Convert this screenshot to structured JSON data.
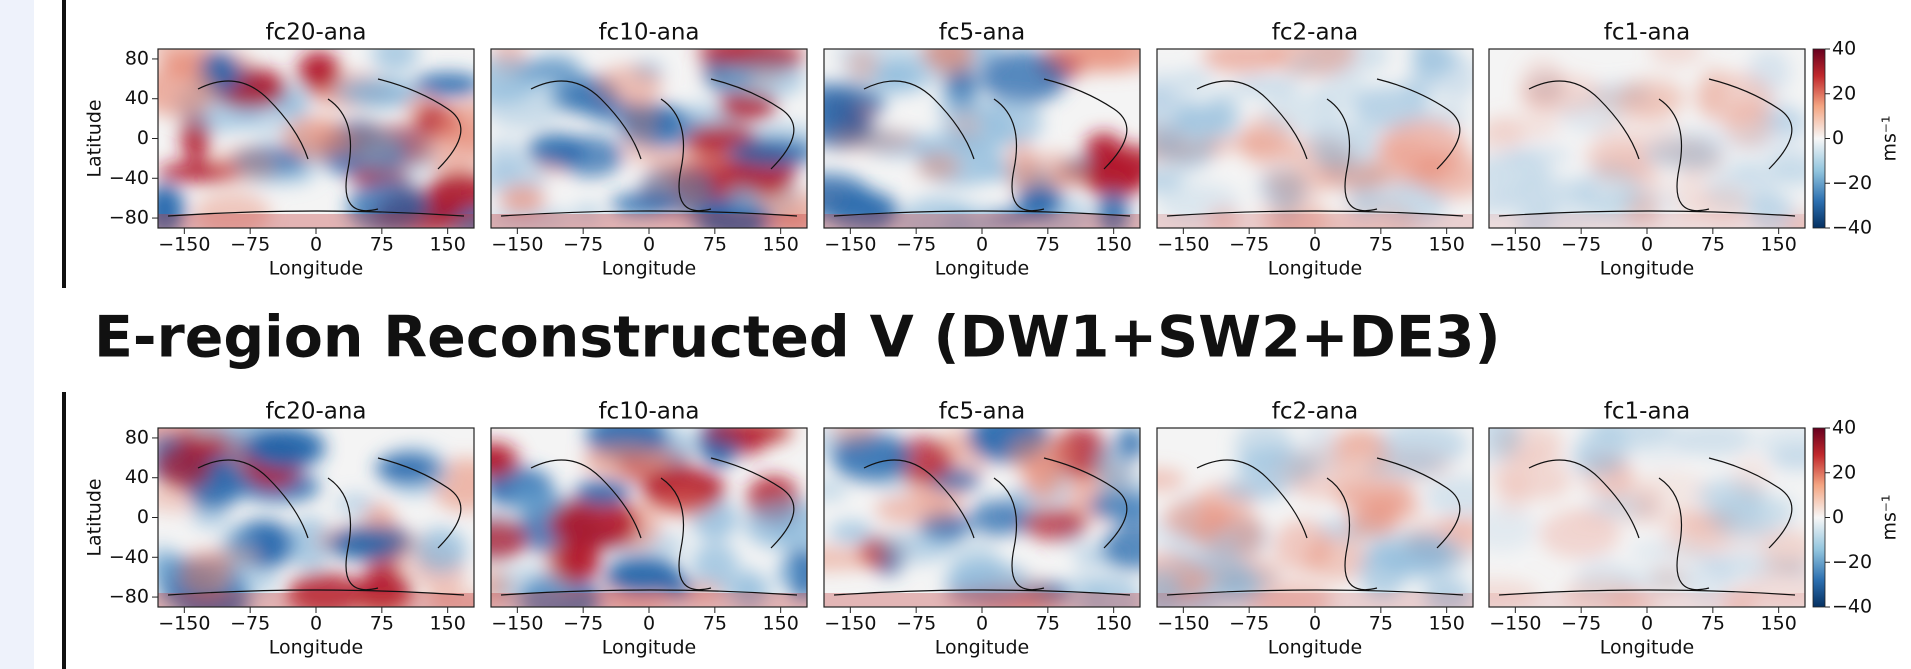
{
  "heading": "E-region Reconstructed V (DW1+SW2+DE3)",
  "rows": [
    {
      "panels": [
        {
          "title": "fc20-ana"
        },
        {
          "title": "fc10-ana"
        },
        {
          "title": "fc5-ana"
        },
        {
          "title": "fc2-ana"
        },
        {
          "title": "fc1-ana"
        }
      ],
      "y_label": "Latitude",
      "y_ticks": [
        "80",
        "40",
        "0",
        "−40",
        "−80"
      ],
      "x_label": "Longitude",
      "x_ticks": [
        "−150",
        "−75",
        "0",
        "75",
        "150"
      ],
      "colorbar": {
        "ticks": [
          "40",
          "20",
          "0",
          "−20",
          "−40"
        ],
        "label": "ms⁻¹"
      }
    },
    {
      "panels": [
        {
          "title": "fc20-ana"
        },
        {
          "title": "fc10-ana"
        },
        {
          "title": "fc5-ana"
        },
        {
          "title": "fc2-ana"
        },
        {
          "title": "fc1-ana"
        }
      ],
      "y_label": "Latitude",
      "y_ticks": [
        "80",
        "40",
        "0",
        "−40",
        "−80"
      ],
      "x_label": "Longitude",
      "x_ticks": [
        "−150",
        "−75",
        "0",
        "75",
        "150"
      ],
      "colorbar": {
        "ticks": [
          "40",
          "20",
          "0",
          "−20",
          "−40"
        ],
        "label": "ms⁻¹"
      }
    }
  ]
}
